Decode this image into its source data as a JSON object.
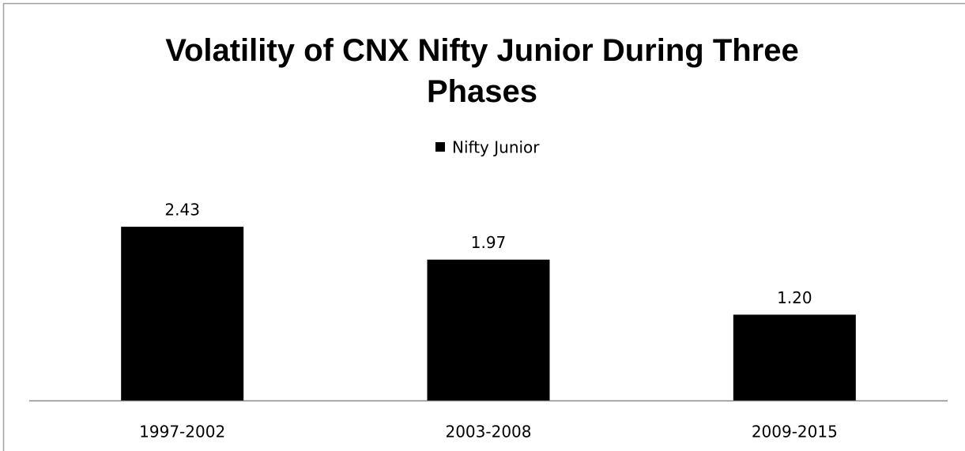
{
  "chart_data": {
    "type": "bar",
    "title": "Volatility of CNX Nifty Junior During Three Phases",
    "categories": [
      "1997-2002",
      "2003-2008",
      "2009-2015"
    ],
    "series": [
      {
        "name": "Nifty Junior",
        "color": "#000000",
        "values": [
          2.43,
          1.97,
          1.2
        ],
        "value_labels": [
          "2.43",
          "1.97",
          "1.20"
        ]
      }
    ],
    "legend": "top"
  }
}
